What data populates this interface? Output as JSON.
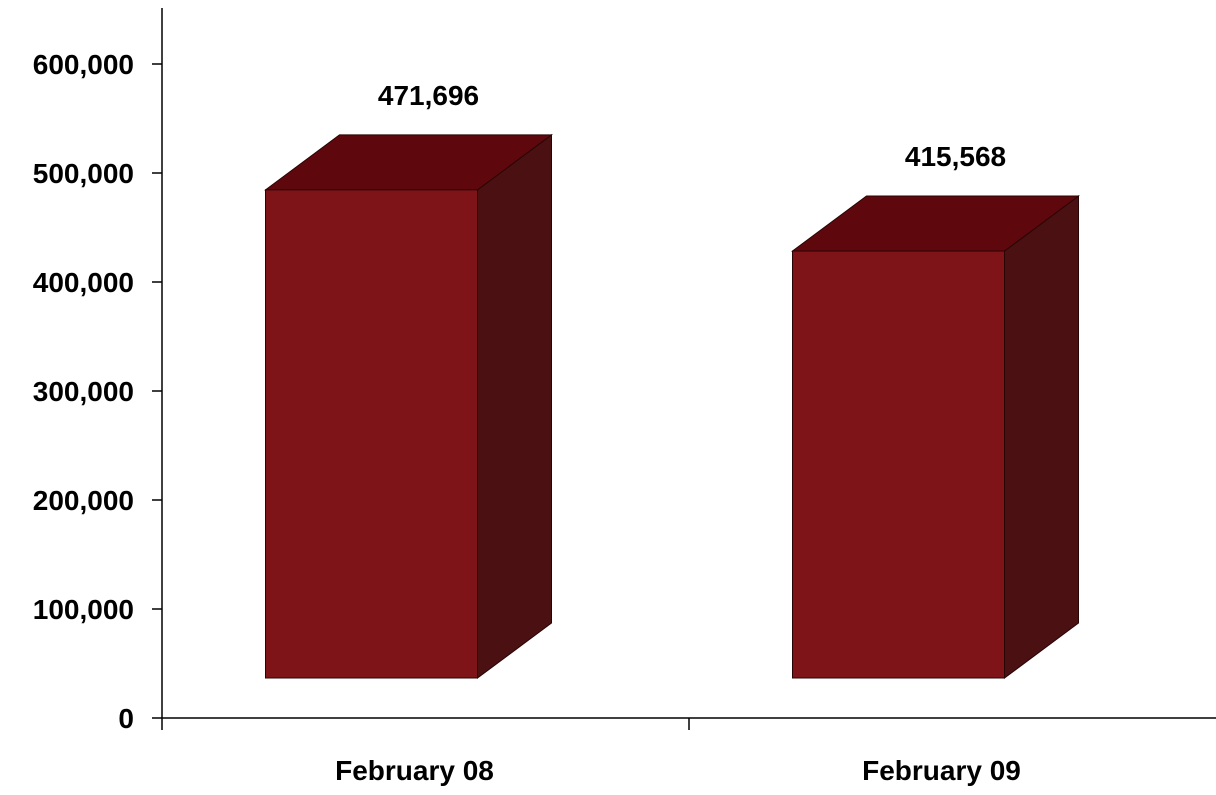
{
  "chart_data": {
    "type": "bar",
    "style": "3d-column",
    "categories": [
      "February 08",
      "February 09"
    ],
    "values": [
      471696,
      415568
    ],
    "data_labels": [
      "471,696",
      "415,568"
    ],
    "y_ticks": [
      0,
      100000,
      200000,
      300000,
      400000,
      500000,
      600000
    ],
    "y_tick_labels": [
      "0",
      "100,000",
      "200,000",
      "300,000",
      "400,000",
      "500,000",
      "600,000"
    ],
    "ylim": [
      0,
      650000
    ],
    "grid": false,
    "legend": "none",
    "colors": {
      "front": "#7e1418",
      "top": "#5e080d",
      "side": "#4a1012",
      "outline": "#2a0405",
      "axis": "#000000"
    }
  }
}
